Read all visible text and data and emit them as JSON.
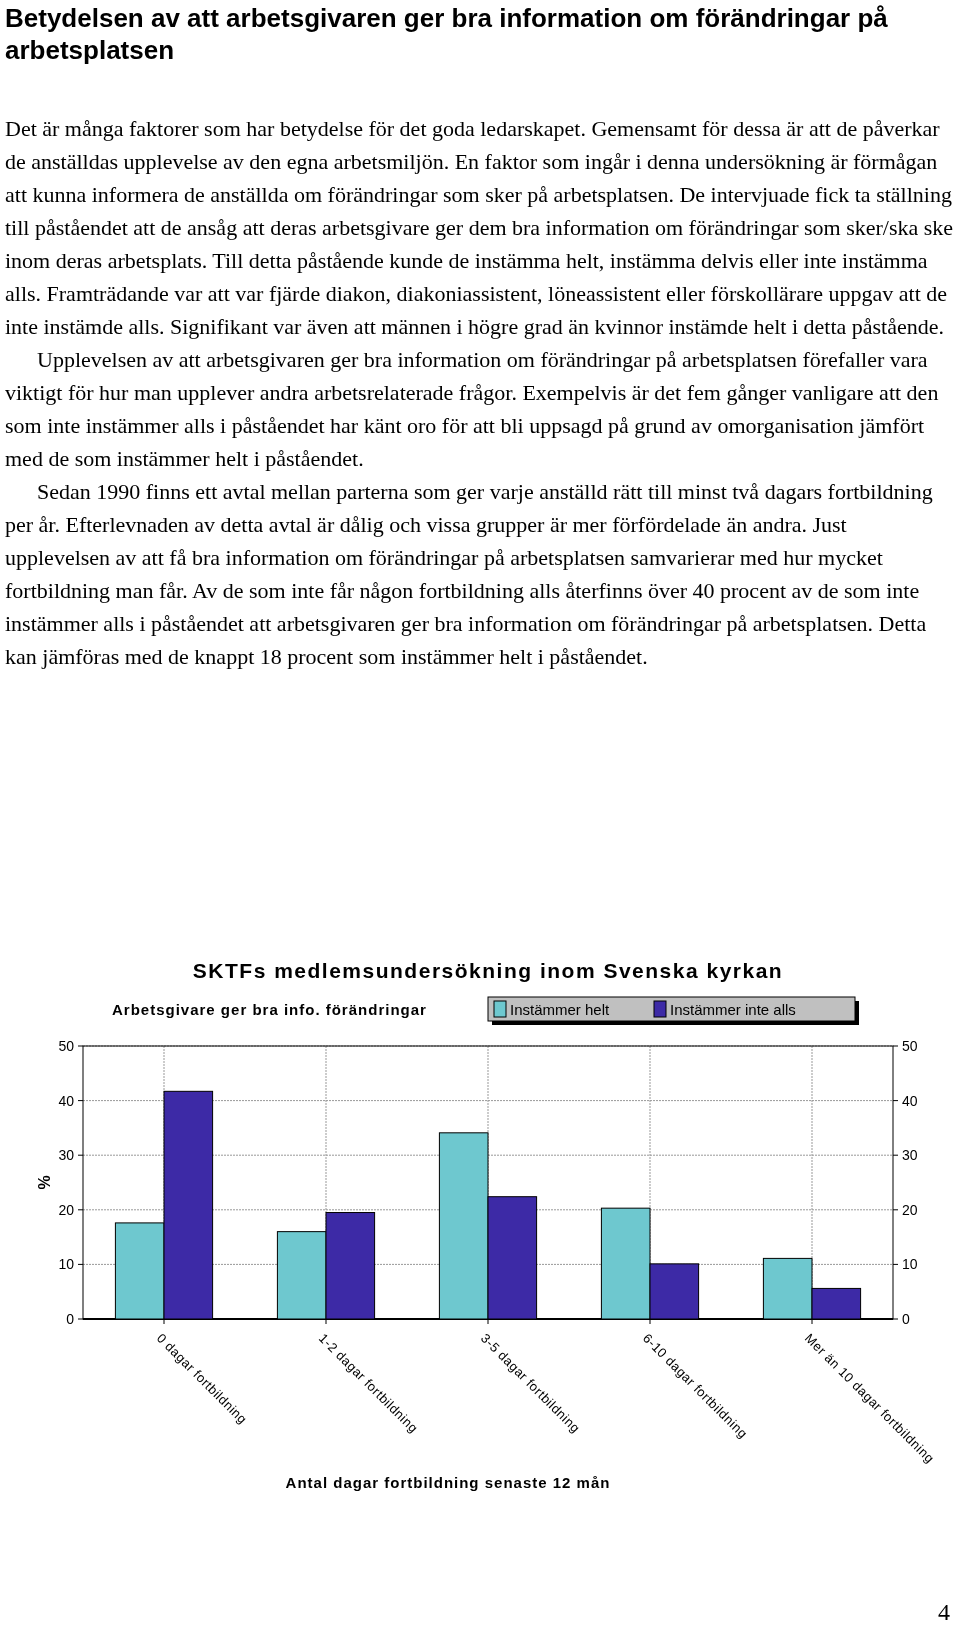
{
  "chart_data": {
    "type": "bar",
    "title": "SKTFs medlemsundersökning inom Svenska kyrkan",
    "subtitle": "Arbetsgivare ger bra info. förändringar",
    "xlabel": "Antal dagar fortbildning senaste 12 mån",
    "ylabel": "%",
    "categories": [
      "0 dagar fortbildning",
      "1-2 dagar fortbildning",
      "3-5 dagar fortbildning",
      "6-10 dagar fortbildning",
      "Mer än 10 dagar fortbildning"
    ],
    "series": [
      {
        "name": "Instämmer helt",
        "color": "#6ec8cf",
        "values": [
          17.6,
          16,
          34.1,
          20.3,
          11.1
        ]
      },
      {
        "name": "Instämmer inte alls",
        "color": "#3d2aa6",
        "values": [
          41.7,
          19.5,
          22.4,
          10.1,
          5.6
        ]
      }
    ],
    "ylim": [
      0,
      50
    ],
    "yticks": [
      0,
      10,
      20,
      30,
      40,
      50
    ],
    "y2lim": [
      0,
      50
    ],
    "y2ticks": [
      0,
      10,
      20,
      30,
      40,
      50
    ],
    "grid": true,
    "legend": "top right",
    "annotations": [
      "Betydelsen av att arbetsgivaren ger bra information om förändringar på arbetsplatsen",
      "Det är många faktorer som har betydelse för det goda ledarskapet. Gemensamt för dessa är att de påverkar de anställdas upplevelse av den egna arbetsmiljön. En faktor som ingår i denna undersökning är förmågan att kunna informera de anställda om förändringar som sker på arbetsplatsen. De intervjuade fick ta ställning till påståendet att de ansåg att deras arbetsgivare ger dem bra information om förändringar som sker/ska ske inom deras arbetsplats. Till detta påstående kunde de instämma helt, instämma delvis eller inte instämma alls. Framträdande var att var fjärde diakon, diakoniassistent, löneassistent eller förskollärare uppgav att de inte instämde alls. Signifikant var även att männen i högre grad än kvinnor instämde helt i detta påstående.",
      "Upplevelsen av att arbetsgivaren ger bra information om förändringar på arbetsplatsen förefaller vara viktigt för hur man upplever andra arbetsrelaterade frågor. Exempelvis är det fem gånger vanligare att den som inte instämmer alls i påståendet har känt oro för att bli uppsagd på grund av omorganisation jämfört med de som instämmer helt i påståendet.",
      "Sedan 1990 finns ett avtal mellan parterna som ger varje anställd rätt till minst två dagars fortbildning per år. Efterlevnaden av detta avtal är dålig och vissa grupper är mer förfördelade än andra. Just upplevelsen av att få bra information om förändringar på arbetsplatsen samvarierar med hur mycket fortbildning man får. Av de som inte får någon fortbildning alls återfinns över 40 procent av de som inte instämmer alls i påståendet att arbetsgivaren ger bra information om förändringar på arbetsplatsen. Detta kan jämföras med de knappt 18 procent som instämmer helt i påståendet.",
      "4"
    ]
  }
}
